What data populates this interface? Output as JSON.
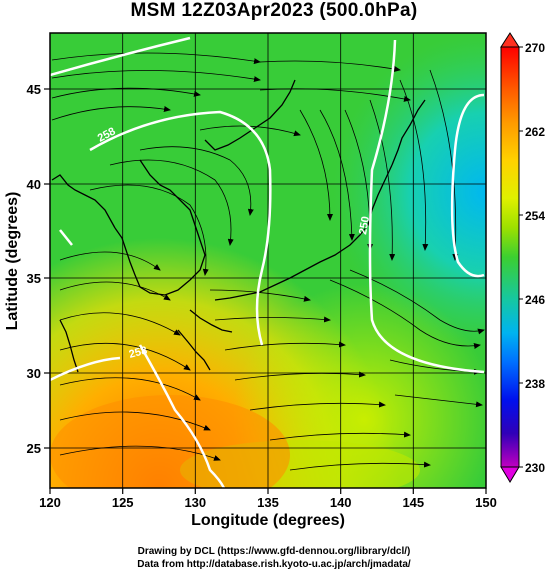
{
  "title": "MSM 12Z03Apr2023 (500.0hPa)",
  "xlabel": "Longitude (degrees)",
  "ylabel": "Latitude  (degrees)",
  "x_ticks": [
    "120",
    "125",
    "130",
    "135",
    "140",
    "145",
    "150"
  ],
  "y_ticks": [
    "25",
    "30",
    "35",
    "40",
    "45"
  ],
  "colorbar_ticks": [
    "270",
    "262",
    "254",
    "246",
    "238",
    "230"
  ],
  "credits": {
    "line1": "Drawing by DCL (https://www.gfd-dennou.org/library/dcl/)",
    "line2": "Data from http://database.rish.kyoto-u.ac.jp/arch/jmadata/"
  },
  "contour_labels": [
    "258",
    "258",
    "250"
  ],
  "chart_data": {
    "type": "heatmap",
    "xlim": [
      120,
      150
    ],
    "ylim": [
      22.5,
      48
    ],
    "grid": true,
    "colorbar": {
      "range": [
        230,
        270
      ],
      "position": "right",
      "extend": "both"
    },
    "field": "temperature with wind streamlines",
    "contour_levels_shown": [
      250,
      258
    ]
  },
  "colors": {
    "cb_stops": [
      "#ff0000",
      "#ff5a00",
      "#ff9a00",
      "#ffd200",
      "#e0f000",
      "#9de000",
      "#3ccf30",
      "#16c8a0",
      "#00b4f0",
      "#0070ff",
      "#0010ee",
      "#3000b8",
      "#c000c0"
    ]
  }
}
